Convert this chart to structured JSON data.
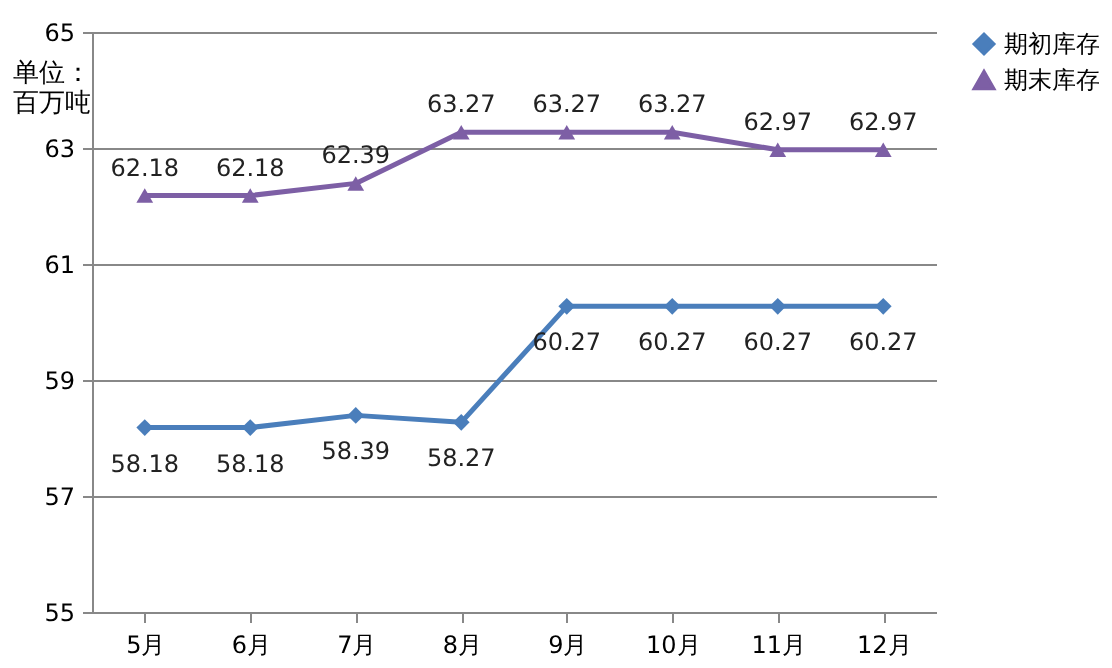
{
  "chart_data": {
    "type": "line",
    "ylabel": "单位：百万吨",
    "categories": [
      "5月",
      "6月",
      "7月",
      "8月",
      "9月",
      "10月",
      "11月",
      "12月"
    ],
    "series": [
      {
        "name": "期初库存",
        "color": "#4a7ebb",
        "marker": "diamond",
        "values": [
          58.18,
          58.18,
          58.39,
          58.27,
          60.27,
          60.27,
          60.27,
          60.27
        ]
      },
      {
        "name": "期末库存",
        "color": "#7d5fa5",
        "marker": "triangle",
        "values": [
          62.18,
          62.18,
          62.39,
          63.27,
          63.27,
          63.27,
          62.97,
          62.97
        ]
      }
    ],
    "ylim": [
      55,
      65
    ],
    "yticks": [
      55,
      57,
      59,
      61,
      63,
      65
    ],
    "grid": "y",
    "legend": "right",
    "data_labels": true
  }
}
